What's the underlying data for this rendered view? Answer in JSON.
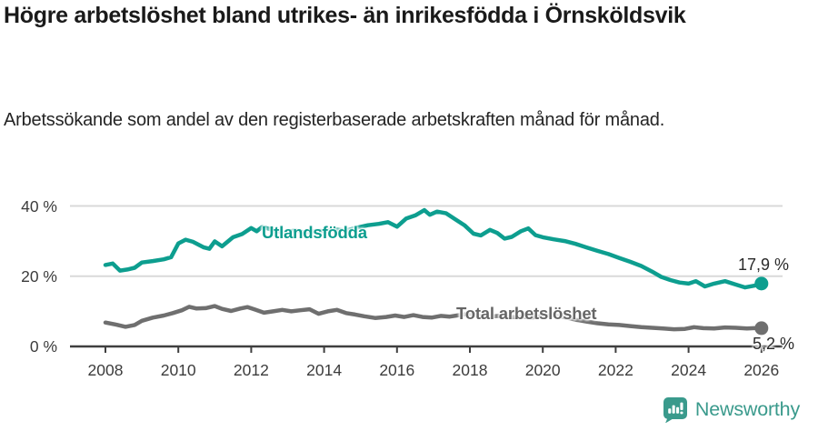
{
  "header": {
    "title": "Högre arbetslöshet bland utrikes- än inrikesfödda i Örnsköldsvik",
    "subtitle": "Arbetssökande som andel av den registerbaserade arbetskraften månad för månad."
  },
  "chart_data": {
    "type": "line",
    "title": "Högre arbetslöshet bland utrikes- än inrikesfödda i Örnsköldsvik",
    "subtitle": "Arbetssökande som andel av den registerbaserade arbetskraften månad för månad.",
    "xlabel": "",
    "ylabel": "",
    "xlim": [
      2007.6,
      2026.6
    ],
    "ylim": [
      0,
      42
    ],
    "grid": "horizontal-light",
    "legend_position": "inline-labels-on-lines",
    "x_ticks": [
      2008,
      2010,
      2012,
      2014,
      2016,
      2018,
      2020,
      2022,
      2024,
      2026
    ],
    "y_ticks": [
      {
        "value": 0,
        "label": "0 %"
      },
      {
        "value": 20,
        "label": "20 %"
      },
      {
        "value": 40,
        "label": "40 %"
      }
    ],
    "series": [
      {
        "name": "Utlandsfödda",
        "color": "#0d9e8f",
        "end_label": "17,9 %",
        "end_value": 17.9,
        "x": [
          2008.0,
          2008.2,
          2008.4,
          2008.6,
          2008.8,
          2009.0,
          2009.3,
          2009.6,
          2009.8,
          2010.0,
          2010.2,
          2010.4,
          2010.7,
          2010.85,
          2011.0,
          2011.2,
          2011.5,
          2011.75,
          2012.0,
          2012.15,
          2012.3,
          2012.6,
          2012.9,
          2013.2,
          2013.5,
          2013.8,
          2014.0,
          2014.3,
          2014.6,
          2014.9,
          2015.2,
          2015.5,
          2015.75,
          2016.0,
          2016.25,
          2016.5,
          2016.75,
          2016.9,
          2017.1,
          2017.35,
          2017.6,
          2017.85,
          2018.1,
          2018.3,
          2018.55,
          2018.75,
          2018.95,
          2019.15,
          2019.4,
          2019.6,
          2019.8,
          2020.0,
          2020.3,
          2020.6,
          2020.9,
          2021.2,
          2021.5,
          2021.8,
          2022.1,
          2022.4,
          2022.7,
          2023.0,
          2023.25,
          2023.5,
          2023.75,
          2024.0,
          2024.2,
          2024.45,
          2024.7,
          2025.0,
          2025.3,
          2025.55,
          2025.8,
          2026.0
        ],
        "values": [
          23.2,
          23.6,
          21.6,
          21.9,
          22.4,
          23.9,
          24.3,
          24.8,
          25.4,
          29.3,
          30.4,
          29.8,
          28.2,
          27.8,
          29.9,
          28.5,
          31.1,
          32.0,
          33.7,
          32.8,
          34.0,
          33.2,
          32.4,
          33.0,
          32.4,
          32.9,
          32.8,
          33.3,
          33.0,
          33.8,
          34.5,
          34.9,
          35.4,
          34.1,
          36.4,
          37.3,
          38.8,
          37.5,
          38.4,
          37.9,
          36.2,
          34.5,
          32.1,
          31.6,
          33.2,
          32.3,
          30.7,
          31.2,
          32.8,
          33.6,
          31.7,
          31.1,
          30.5,
          30.0,
          29.2,
          28.2,
          27.2,
          26.3,
          25.2,
          24.1,
          22.9,
          21.3,
          19.8,
          18.9,
          18.2,
          17.9,
          18.6,
          17.1,
          17.9,
          18.6,
          17.6,
          16.8,
          17.3,
          17.9
        ]
      },
      {
        "name": "Total arbetslöshet",
        "color": "#6f6f6f",
        "end_label": "5,2 %",
        "end_value": 5.2,
        "x": [
          2008.0,
          2008.3,
          2008.55,
          2008.8,
          2009.0,
          2009.3,
          2009.6,
          2009.85,
          2010.1,
          2010.3,
          2010.5,
          2010.75,
          2011.0,
          2011.2,
          2011.45,
          2011.7,
          2011.9,
          2012.1,
          2012.35,
          2012.6,
          2012.85,
          2013.1,
          2013.35,
          2013.6,
          2013.85,
          2014.1,
          2014.35,
          2014.6,
          2014.85,
          2015.1,
          2015.4,
          2015.7,
          2015.95,
          2016.2,
          2016.45,
          2016.7,
          2016.95,
          2017.2,
          2017.45,
          2017.7,
          2017.95,
          2018.2,
          2018.5,
          2018.8,
          2019.1,
          2019.4,
          2019.7,
          2020.0,
          2020.3,
          2020.6,
          2020.9,
          2021.2,
          2021.5,
          2021.8,
          2022.1,
          2022.4,
          2022.7,
          2023.0,
          2023.3,
          2023.6,
          2023.9,
          2024.15,
          2024.4,
          2024.7,
          2025.0,
          2025.3,
          2025.6,
          2025.8,
          2026.0
        ],
        "values": [
          6.8,
          6.2,
          5.6,
          6.1,
          7.3,
          8.2,
          8.8,
          9.5,
          10.3,
          11.3,
          10.8,
          10.9,
          11.5,
          10.7,
          10.1,
          10.8,
          11.2,
          10.5,
          9.6,
          10.0,
          10.4,
          10.0,
          10.3,
          10.6,
          9.3,
          10.0,
          10.4,
          9.5,
          9.1,
          8.6,
          8.1,
          8.4,
          8.8,
          8.4,
          8.9,
          8.4,
          8.2,
          8.7,
          8.5,
          8.9,
          9.3,
          8.8,
          8.5,
          8.7,
          8.3,
          8.5,
          8.2,
          8.7,
          8.9,
          8.3,
          7.6,
          7.1,
          6.6,
          6.3,
          6.1,
          5.8,
          5.5,
          5.3,
          5.1,
          4.9,
          5.0,
          5.5,
          5.2,
          5.1,
          5.4,
          5.3,
          5.1,
          5.2,
          5.2
        ]
      }
    ],
    "colors": {
      "gridline": "#d9d9d9",
      "axis": "#3f3f3f",
      "tick_text": "#3c3c3c"
    }
  },
  "footer": {
    "brand": "Newsworthy",
    "brand_color": "#3a9a8c",
    "logo_icon": "bar-chart-speech-bubble-icon"
  }
}
